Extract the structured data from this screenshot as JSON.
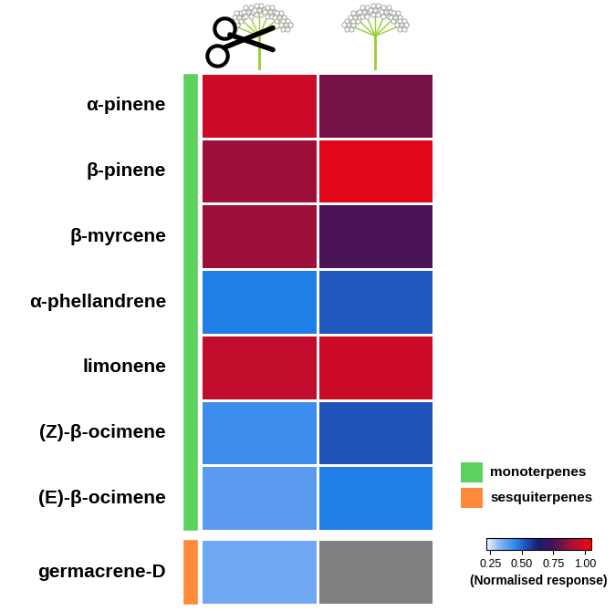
{
  "chart_data": {
    "type": "heatmap",
    "rows": [
      "α-pinene",
      "β-pinene",
      "β-myrcene",
      "α-phellandrene",
      "limonene",
      "(Z)-β-ocimene",
      "(E)-β-ocimene",
      "germacrene-D"
    ],
    "columns": [
      null,
      null
    ],
    "values": [
      [
        0.97,
        0.82
      ],
      [
        0.88,
        1.0
      ],
      [
        0.88,
        0.76
      ],
      [
        0.47,
        0.52
      ],
      [
        0.95,
        0.97
      ],
      [
        0.43,
        0.53
      ],
      [
        0.39,
        0.47
      ],
      [
        0.36,
        null
      ]
    ],
    "groups": [
      {
        "name": "monoterpenes",
        "color": "#5cd15c",
        "rows": 7
      },
      {
        "name": "sesquiterpenes",
        "color": "#ff8a3a",
        "rows": 1
      }
    ],
    "colorbar_range": [
      0.22,
      1.05
    ],
    "colorbar_ticks": [
      {
        "value": 0.25,
        "label": "0.25"
      },
      {
        "value": 0.5,
        "label": "0.50"
      },
      {
        "value": 0.75,
        "label": "0.75"
      },
      {
        "value": 1.0,
        "label": "1.00"
      }
    ],
    "colorbar_label": "(Normalised response)"
  }
}
